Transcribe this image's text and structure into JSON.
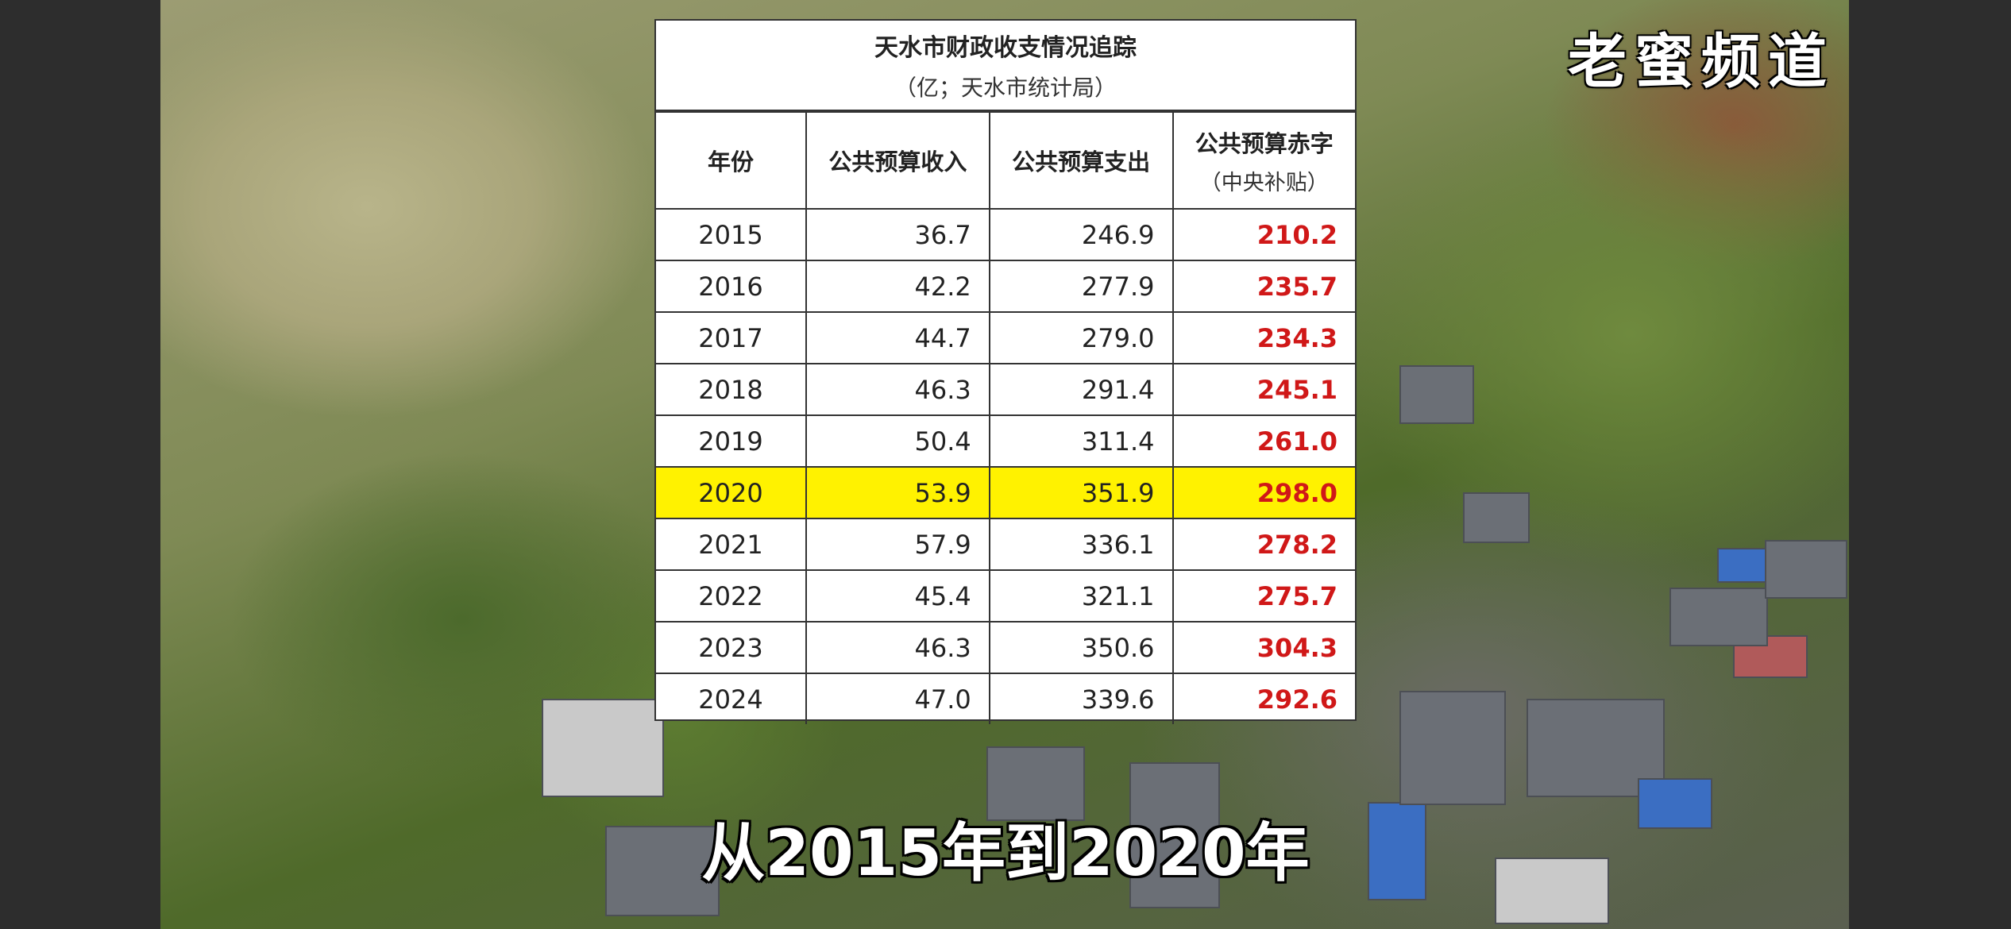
{
  "watermark": "老蜜频道",
  "subtitle": "从2015年到2020年",
  "table": {
    "title": "天水市财政收支情况追踪",
    "subtitle": "（亿；天水市统计局）",
    "headers": {
      "year": "年份",
      "revenue": "公共预算收入",
      "expenditure": "公共预算支出",
      "deficit": "公共预算赤字",
      "deficit_note": "（中央补贴）"
    },
    "rows": [
      {
        "year": "2015",
        "revenue": "36.7",
        "expenditure": "246.9",
        "deficit": "210.2"
      },
      {
        "year": "2016",
        "revenue": "42.2",
        "expenditure": "277.9",
        "deficit": "235.7"
      },
      {
        "year": "2017",
        "revenue": "44.7",
        "expenditure": "279.0",
        "deficit": "234.3"
      },
      {
        "year": "2018",
        "revenue": "46.3",
        "expenditure": "291.4",
        "deficit": "245.1"
      },
      {
        "year": "2019",
        "revenue": "50.4",
        "expenditure": "311.4",
        "deficit": "261.0"
      },
      {
        "year": "2020",
        "revenue": "53.9",
        "expenditure": "351.9",
        "deficit": "298.0"
      },
      {
        "year": "2021",
        "revenue": "57.9",
        "expenditure": "336.1",
        "deficit": "278.2"
      },
      {
        "year": "2022",
        "revenue": "45.4",
        "expenditure": "321.1",
        "deficit": "275.7"
      },
      {
        "year": "2023",
        "revenue": "46.3",
        "expenditure": "350.6",
        "deficit": "304.3"
      },
      {
        "year": "2024",
        "revenue": "47.0",
        "expenditure": "339.6",
        "deficit": "292.6"
      }
    ],
    "highlight_year": "2020",
    "colors": {
      "highlight": "#fff200",
      "deficit_text": "#d01818"
    }
  }
}
